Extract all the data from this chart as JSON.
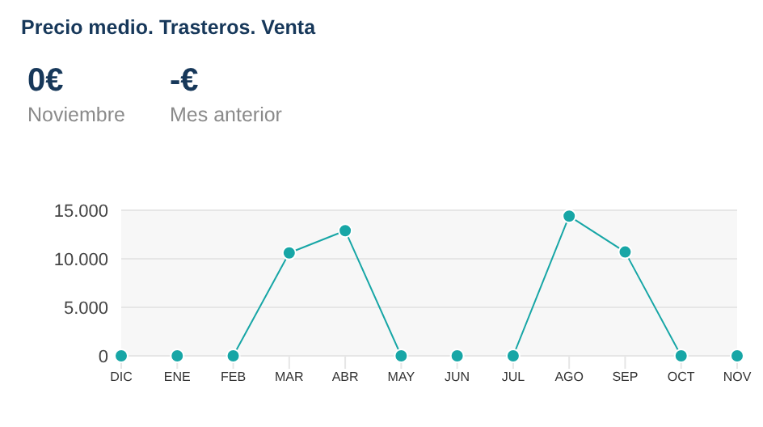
{
  "chart_data": {
    "type": "line",
    "title": "Precio medio. Trasteros. Venta",
    "annotations": [
      "0€",
      "Noviembre",
      "-€",
      "Mes anterior"
    ],
    "categories": [
      "DIC",
      "ENE",
      "FEB",
      "MAR",
      "ABR",
      "MAY",
      "JUN",
      "JUL",
      "AGO",
      "SEP",
      "OCT",
      "NOV"
    ],
    "series": [
      {
        "color": "#17a6a6",
        "values": [
          0,
          0,
          0,
          10600,
          12900,
          0,
          0,
          0,
          14400,
          10700,
          0,
          0
        ]
      }
    ],
    "ylim": [
      0,
      15000
    ],
    "yticks": [
      {
        "value": 0,
        "label": "0"
      },
      {
        "value": 5000,
        "label": "5.000"
      },
      {
        "value": 10000,
        "label": "10.000"
      },
      {
        "value": 15000,
        "label": "15.000"
      }
    ],
    "grid": "y",
    "marker": "circle",
    "line_style": "solid"
  }
}
